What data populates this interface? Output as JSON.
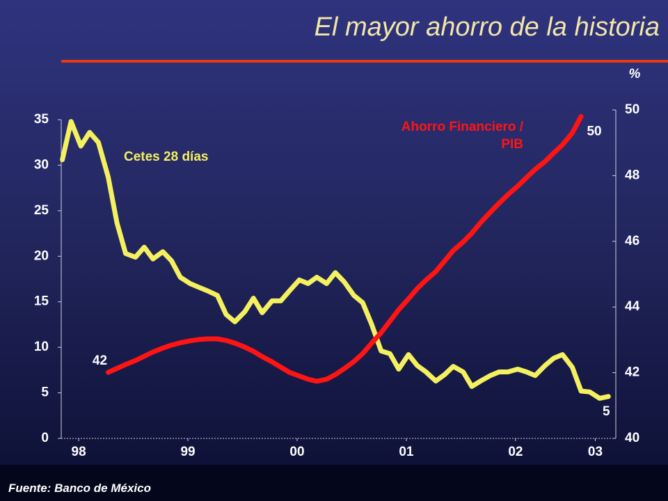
{
  "title": "El mayor ahorro de la historia",
  "source": "Fuente: Banco de México",
  "chart_data": {
    "type": "line",
    "y2label": "%",
    "x": [
      97.85,
      97.93,
      98.02,
      98.1,
      98.18,
      98.27,
      98.35,
      98.43,
      98.52,
      98.6,
      98.68,
      98.77,
      98.85,
      98.93,
      99.02,
      99.1,
      99.18,
      99.27,
      99.35,
      99.43,
      99.52,
      99.6,
      99.68,
      99.77,
      99.85,
      99.93,
      100.02,
      100.1,
      100.18,
      100.27,
      100.35,
      100.43,
      100.52,
      100.6,
      100.68,
      100.77,
      100.85,
      100.93,
      101.02,
      101.1,
      101.18,
      101.27,
      101.35,
      101.43,
      101.52,
      101.6,
      101.68,
      101.77,
      101.85,
      101.93,
      102.02,
      102.1,
      102.18,
      102.27,
      102.35,
      102.43,
      102.52,
      102.6,
      102.68,
      102.77,
      102.85
    ],
    "xlim": [
      97.84,
      102.88
    ],
    "xticks": [
      98,
      99,
      {
        "value": 100,
        "label": "00"
      },
      {
        "value": 101,
        "label": "01"
      },
      {
        "value": 102,
        "label": "02"
      },
      {
        "value": 102.73,
        "label": "03"
      }
    ],
    "ylim": [
      0,
      35
    ],
    "yticks": [
      0,
      5,
      10,
      15,
      20,
      25,
      30,
      35
    ],
    "y2lim": [
      40,
      50
    ],
    "y2ticks": [
      40,
      42,
      44,
      46,
      48,
      50
    ],
    "grid": false,
    "series": [
      {
        "name": "Cetes 28 días",
        "color": "#f4f060",
        "values": [
          30.6,
          34.8,
          32.1,
          33.6,
          32.5,
          28.7,
          23.7,
          20.3,
          19.9,
          21.0,
          19.7,
          20.5,
          19.5,
          17.7,
          17.0,
          16.6,
          16.2,
          15.7,
          13.6,
          12.8,
          13.9,
          15.4,
          13.8,
          15.1,
          15.1,
          16.2,
          17.4,
          17.0,
          17.7,
          17.0,
          18.2,
          17.2,
          15.7,
          14.9,
          12.6,
          9.6,
          9.3,
          7.6,
          9.2,
          8.0,
          7.3,
          6.3,
          7.0,
          7.9,
          7.3,
          5.7,
          6.3,
          6.9,
          7.3,
          7.3,
          7.6,
          7.3,
          6.9,
          8.0,
          8.8,
          9.2,
          7.8,
          5.2,
          5.1,
          4.4,
          4.6
        ],
        "value_labels": [
          null,
          null,
          null,
          null,
          null,
          null,
          null,
          null,
          null,
          null,
          null,
          null,
          null,
          null,
          null,
          null,
          null,
          null,
          null,
          null,
          null,
          null,
          null,
          null,
          null,
          null,
          null,
          null,
          null,
          null,
          null,
          null,
          null,
          null,
          null,
          null,
          null,
          null,
          null,
          null,
          null,
          null,
          null,
          null,
          null,
          null,
          null,
          null,
          null,
          null,
          null,
          null,
          null,
          null,
          null,
          null,
          null,
          null,
          null,
          null,
          "5"
        ]
      },
      {
        "name": "Ahorro Financiero / PIB",
        "color": "#ff1414",
        "axis": "y2",
        "values": [
          null,
          null,
          null,
          null,
          null,
          42.01,
          42.13,
          42.25,
          42.37,
          42.5,
          42.63,
          42.75,
          42.84,
          42.91,
          42.97,
          43.01,
          43.03,
          43.03,
          42.98,
          42.9,
          42.78,
          42.65,
          42.49,
          42.33,
          42.17,
          42.01,
          41.9,
          41.8,
          41.74,
          41.8,
          41.94,
          42.12,
          42.34,
          42.58,
          42.89,
          43.22,
          43.57,
          43.92,
          44.25,
          44.56,
          44.82,
          45.08,
          45.4,
          45.72,
          45.98,
          46.25,
          46.57,
          46.89,
          47.16,
          47.42,
          47.68,
          47.94,
          48.19,
          48.43,
          48.69,
          48.94,
          49.3,
          49.8,
          null,
          null,
          null
        ],
        "value_labels": [
          null,
          null,
          null,
          null,
          null,
          "42",
          null,
          null,
          null,
          null,
          null,
          null,
          null,
          null,
          null,
          null,
          null,
          null,
          null,
          null,
          null,
          null,
          null,
          null,
          null,
          null,
          null,
          null,
          null,
          null,
          null,
          null,
          null,
          null,
          null,
          null,
          null,
          null,
          null,
          null,
          null,
          null,
          null,
          null,
          null,
          null,
          null,
          null,
          null,
          null,
          null,
          null,
          null,
          null,
          null,
          null,
          null,
          "50",
          null,
          null,
          null
        ]
      }
    ]
  }
}
